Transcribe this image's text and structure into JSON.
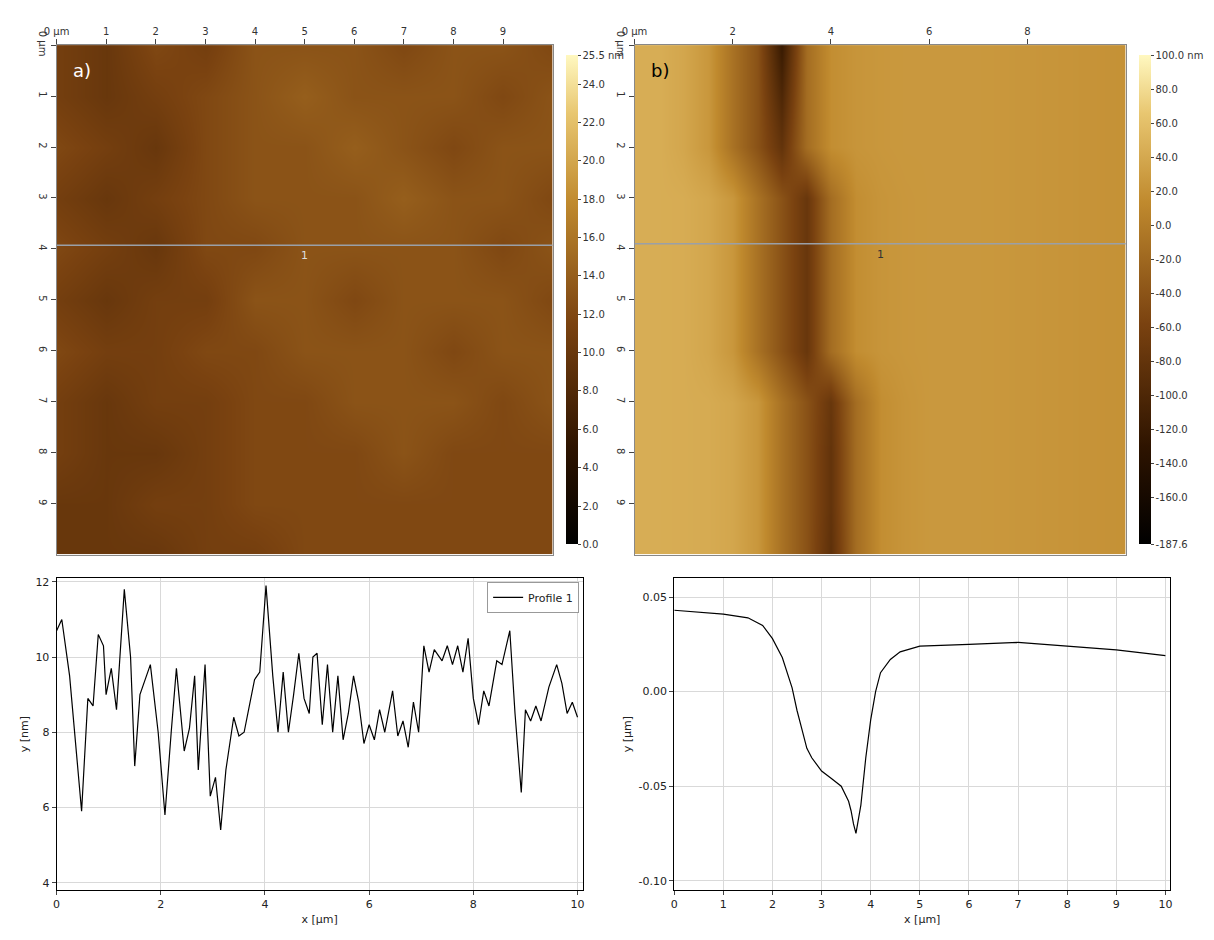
{
  "chart_data": [
    {
      "type": "heatmap",
      "panel": "a)",
      "x": [
        0,
        1,
        2,
        3,
        4,
        5,
        6,
        7,
        8,
        9,
        10
      ],
      "y": [
        0,
        1,
        2,
        3,
        4,
        5,
        6,
        7,
        8,
        9,
        10
      ],
      "z": [
        [
          11,
          10,
          12,
          11,
          13,
          13,
          13,
          12,
          13,
          13,
          12
        ],
        [
          11,
          10,
          11,
          12,
          13,
          14,
          13,
          13,
          13,
          12,
          13
        ],
        [
          12,
          11,
          10,
          12,
          13,
          13,
          14,
          13,
          12,
          13,
          13
        ],
        [
          11,
          10,
          11,
          12,
          13,
          13,
          13,
          14,
          13,
          13,
          12
        ],
        [
          12,
          11,
          10,
          12,
          12,
          13,
          13,
          13,
          13,
          12,
          13
        ],
        [
          11,
          10,
          11,
          11,
          13,
          13,
          12,
          13,
          13,
          13,
          12
        ],
        [
          12,
          11,
          11,
          12,
          12,
          13,
          13,
          13,
          12,
          13,
          13
        ],
        [
          11,
          10,
          11,
          11,
          12,
          12,
          13,
          13,
          13,
          12,
          13
        ],
        [
          11,
          10,
          10,
          11,
          12,
          12,
          12,
          13,
          12,
          12,
          12
        ],
        [
          10,
          10,
          11,
          11,
          12,
          12,
          12,
          12,
          12,
          12,
          12
        ],
        [
          10,
          10,
          10,
          11,
          11,
          12,
          12,
          12,
          12,
          12,
          12
        ]
      ],
      "xlim": [
        0,
        10
      ],
      "ylim": [
        10,
        0
      ],
      "xticks": [
        {
          "value": 0,
          "label": "0 µm"
        },
        1,
        2,
        3,
        4,
        5,
        6,
        7,
        8,
        9
      ],
      "yticks": [
        {
          "value": 0,
          "label": "0 µm"
        },
        1,
        2,
        3,
        4,
        5,
        6,
        7,
        8,
        9
      ],
      "colorbar": {
        "range": [
          0,
          25.5
        ],
        "ticks": [
          {
            "value": 25.5,
            "label": "25.5 nm"
          },
          {
            "value": 24,
            "label": "24.0"
          },
          {
            "value": 22,
            "label": "22.0"
          },
          {
            "value": 20,
            "label": "20.0"
          },
          {
            "value": 18,
            "label": "18.0"
          },
          {
            "value": 16,
            "label": "16.0"
          },
          {
            "value": 14,
            "label": "14.0"
          },
          {
            "value": 12,
            "label": "12.0"
          },
          {
            "value": 10,
            "label": "10.0"
          },
          {
            "value": 8,
            "label": "8.0"
          },
          {
            "value": 6,
            "label": "6.0"
          },
          {
            "value": 4,
            "label": "4.0"
          },
          {
            "value": 2,
            "label": "2.0"
          },
          {
            "value": 0,
            "label": "0.0"
          }
        ]
      },
      "profile_line": {
        "y": 3.93,
        "label": "1"
      }
    },
    {
      "type": "heatmap",
      "panel": "b)",
      "x": [
        0,
        0.5,
        1,
        1.5,
        2,
        2.5,
        3,
        3.5,
        4,
        4.5,
        5,
        5.5,
        6,
        6.5,
        7,
        7.5,
        8,
        8.5,
        9,
        9.5,
        10
      ],
      "y": [
        0,
        1,
        2,
        3,
        4,
        5,
        6,
        7,
        8,
        9,
        10
      ],
      "z": [
        [
          44,
          44,
          38,
          25,
          -10,
          -42,
          -120,
          -15,
          17,
          23,
          25,
          26,
          26,
          26,
          26,
          25,
          24,
          23,
          22,
          21,
          20
        ],
        [
          44,
          44,
          38,
          25,
          -10,
          -42,
          -100,
          -15,
          17,
          23,
          25,
          26,
          26,
          26,
          26,
          25,
          24,
          23,
          22,
          21,
          20
        ],
        [
          44,
          44,
          38,
          25,
          -10,
          -42,
          -80,
          -15,
          17,
          23,
          25,
          26,
          26,
          26,
          26,
          25,
          24,
          23,
          22,
          21,
          20
        ],
        [
          44,
          44,
          43,
          38,
          25,
          -10,
          -42,
          -75,
          -15,
          17,
          23,
          25,
          26,
          26,
          26,
          25,
          24,
          23,
          22,
          21,
          20
        ],
        [
          44,
          44,
          43,
          38,
          25,
          -10,
          -42,
          -75,
          -15,
          17,
          23,
          25,
          26,
          26,
          26,
          25,
          24,
          23,
          22,
          21,
          20
        ],
        [
          44,
          44,
          43,
          38,
          25,
          -10,
          -42,
          -75,
          -15,
          17,
          23,
          25,
          26,
          26,
          26,
          25,
          24,
          23,
          22,
          21,
          20
        ],
        [
          44,
          44,
          43,
          38,
          25,
          -10,
          -42,
          -75,
          -15,
          17,
          23,
          25,
          26,
          26,
          26,
          25,
          24,
          23,
          22,
          21,
          20
        ],
        [
          44,
          44,
          43,
          42,
          38,
          25,
          -10,
          -42,
          -75,
          -15,
          17,
          23,
          26,
          26,
          26,
          25,
          24,
          23,
          22,
          21,
          20
        ],
        [
          44,
          44,
          43,
          42,
          38,
          25,
          -10,
          -42,
          -80,
          -15,
          17,
          23,
          26,
          26,
          26,
          25,
          24,
          23,
          22,
          21,
          20
        ],
        [
          44,
          44,
          43,
          42,
          38,
          25,
          -10,
          -42,
          -80,
          -15,
          17,
          23,
          26,
          26,
          26,
          25,
          24,
          23,
          22,
          21,
          20
        ],
        [
          44,
          44,
          43,
          42,
          38,
          25,
          -10,
          -42,
          -85,
          -15,
          17,
          23,
          26,
          26,
          26,
          25,
          24,
          23,
          22,
          21,
          20
        ]
      ],
      "xlim": [
        0,
        10
      ],
      "ylim": [
        10,
        0
      ],
      "xticks": [
        {
          "value": 0,
          "label": "0 µm"
        },
        2,
        4,
        6,
        8
      ],
      "yticks": [
        {
          "value": 0,
          "label": "0 µm"
        },
        1,
        2,
        3,
        4,
        5,
        6,
        7,
        8,
        9
      ],
      "colorbar": {
        "range": [
          -187.6,
          100
        ],
        "ticks": [
          {
            "value": 100,
            "label": "100.0 nm"
          },
          {
            "value": 80,
            "label": "80.0"
          },
          {
            "value": 60,
            "label": "60.0"
          },
          {
            "value": 40,
            "label": "40.0"
          },
          {
            "value": 20,
            "label": "20.0"
          },
          {
            "value": 0,
            "label": "0.0"
          },
          {
            "value": -20,
            "label": "-20.0"
          },
          {
            "value": -40,
            "label": "-40.0"
          },
          {
            "value": -60,
            "label": "-60.0"
          },
          {
            "value": -80,
            "label": "-80.0"
          },
          {
            "value": -100,
            "label": "-100.0"
          },
          {
            "value": -120,
            "label": "-120.0"
          },
          {
            "value": -140,
            "label": "-140.0"
          },
          {
            "value": -160,
            "label": "-160.0"
          },
          -187.6
        ]
      },
      "profile_line": {
        "y": 3.9,
        "label": "1"
      }
    },
    {
      "type": "line",
      "xlabel": "x [µm]",
      "ylabel": "y [nm]",
      "x": [
        0,
        0.1,
        0.25,
        0.4,
        0.48,
        0.6,
        0.7,
        0.8,
        0.9,
        0.95,
        1.05,
        1.15,
        1.3,
        1.42,
        1.5,
        1.6,
        1.72,
        1.8,
        1.95,
        2.08,
        2.2,
        2.3,
        2.45,
        2.55,
        2.65,
        2.72,
        2.85,
        2.95,
        3.05,
        3.15,
        3.25,
        3.4,
        3.5,
        3.6,
        3.7,
        3.8,
        3.9,
        4.02,
        4.15,
        4.25,
        4.35,
        4.45,
        4.55,
        4.65,
        4.75,
        4.85,
        4.92,
        5.0,
        5.1,
        5.2,
        5.3,
        5.4,
        5.5,
        5.6,
        5.7,
        5.8,
        5.9,
        6.0,
        6.1,
        6.2,
        6.3,
        6.45,
        6.55,
        6.65,
        6.75,
        6.85,
        6.95,
        7.05,
        7.15,
        7.25,
        7.4,
        7.5,
        7.6,
        7.7,
        7.8,
        7.9,
        8.0,
        8.1,
        8.2,
        8.3,
        8.45,
        8.55,
        8.7,
        8.8,
        8.92,
        9.0,
        9.1,
        9.2,
        9.3,
        9.45,
        9.6,
        9.7,
        9.8,
        9.9,
        10.0
      ],
      "series": [
        {
          "name": "Profile 1",
          "color": "#000000",
          "values": [
            10.7,
            11.0,
            9.5,
            7.0,
            5.9,
            8.9,
            8.7,
            10.6,
            10.3,
            9.0,
            9.7,
            8.6,
            11.8,
            10.0,
            7.1,
            9.0,
            9.5,
            9.8,
            8.0,
            5.8,
            8.0,
            9.7,
            7.5,
            8.1,
            9.5,
            7.0,
            9.8,
            6.3,
            6.8,
            5.4,
            7.0,
            8.4,
            7.9,
            8.0,
            8.7,
            9.4,
            9.6,
            11.9,
            9.5,
            8.0,
            9.6,
            8.0,
            9.0,
            10.1,
            8.9,
            8.5,
            10.0,
            10.1,
            8.2,
            9.8,
            8.0,
            9.5,
            7.8,
            8.5,
            9.5,
            8.8,
            7.7,
            8.2,
            7.8,
            8.6,
            8.0,
            9.1,
            7.9,
            8.3,
            7.6,
            8.8,
            8.0,
            10.3,
            9.6,
            10.2,
            9.9,
            10.3,
            9.8,
            10.3,
            9.6,
            10.5,
            8.9,
            8.2,
            9.1,
            8.7,
            9.9,
            9.8,
            10.7,
            8.5,
            6.4,
            8.6,
            8.3,
            8.7,
            8.3,
            9.2,
            9.8,
            9.3,
            8.5,
            8.8,
            8.4
          ]
        }
      ],
      "xlim": [
        0,
        10.1
      ],
      "ylim": [
        3.8,
        12.1
      ],
      "xticks": [
        0,
        2,
        4,
        6,
        8,
        10
      ],
      "yticks": [
        4,
        6,
        8,
        10,
        12
      ],
      "grid": true,
      "legend": "top right"
    },
    {
      "type": "line",
      "xlabel": "x [µm]",
      "ylabel": "y [µm]",
      "color": "#000000",
      "x": [
        0,
        0.5,
        1,
        1.5,
        1.8,
        2,
        2.2,
        2.4,
        2.5,
        2.6,
        2.7,
        2.8,
        3,
        3.2,
        3.4,
        3.55,
        3.6,
        3.65,
        3.7,
        3.8,
        3.9,
        4,
        4.1,
        4.2,
        4.4,
        4.6,
        5,
        6,
        7,
        8,
        9,
        10
      ],
      "values": [
        0.043,
        0.042,
        0.041,
        0.039,
        0.035,
        0.028,
        0.018,
        0.002,
        -0.01,
        -0.02,
        -0.03,
        -0.035,
        -0.042,
        -0.046,
        -0.05,
        -0.058,
        -0.063,
        -0.07,
        -0.075,
        -0.06,
        -0.035,
        -0.015,
        0,
        0.01,
        0.017,
        0.021,
        0.024,
        0.025,
        0.026,
        0.024,
        0.022,
        0.019
      ],
      "xlim": [
        0,
        10.1
      ],
      "ylim": [
        -0.105,
        0.06
      ],
      "xticks": [
        0,
        1,
        2,
        3,
        4,
        5,
        6,
        7,
        8,
        9,
        10
      ],
      "yticks": [
        {
          "value": -0.1,
          "label": "-0.10"
        },
        -0.05,
        {
          "value": 0,
          "label": "0.00"
        },
        0.05
      ],
      "grid": true
    }
  ]
}
